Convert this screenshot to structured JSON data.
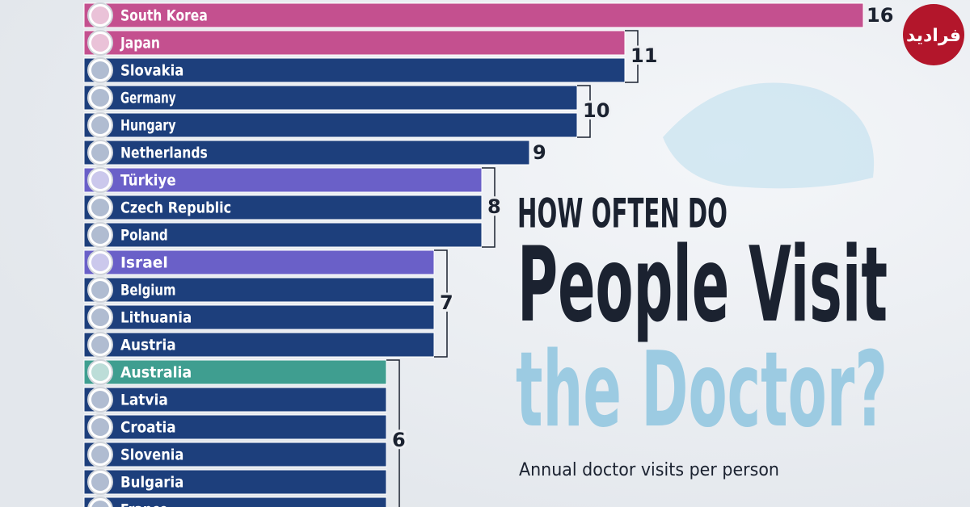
{
  "logo": "فرادید",
  "chart_data": {
    "type": "bar",
    "title": [
      "HOW OFTEN DO",
      "People Visit",
      "the Doctor?"
    ],
    "subtitle": "Annual doctor visits per person",
    "categories": [
      "South Korea",
      "Japan",
      "Slovakia",
      "Germany",
      "Hungary",
      "Netherlands",
      "Türkiye",
      "Czech Republic",
      "Poland",
      "Israel",
      "Belgium",
      "Lithuania",
      "Austria",
      "Australia",
      "Latvia",
      "Croatia",
      "Slovenia",
      "Bulgaria",
      "France"
    ],
    "values": [
      16,
      11,
      11,
      10,
      10,
      9,
      8,
      8,
      8,
      7,
      7,
      7,
      7,
      6,
      6,
      6,
      6,
      6,
      6
    ],
    "colors": [
      "#c4508f",
      "#c4508f",
      "#1d3f7c",
      "#1d3f7c",
      "#1d3f7c",
      "#1d3f7c",
      "#6a60c8",
      "#1d3f7c",
      "#1d3f7c",
      "#6a60c8",
      "#1d3f7c",
      "#1d3f7c",
      "#1d3f7c",
      "#3f9e90",
      "#1d3f7c",
      "#1d3f7c",
      "#1d3f7c",
      "#1d3f7c",
      "#1d3f7c"
    ]
  }
}
